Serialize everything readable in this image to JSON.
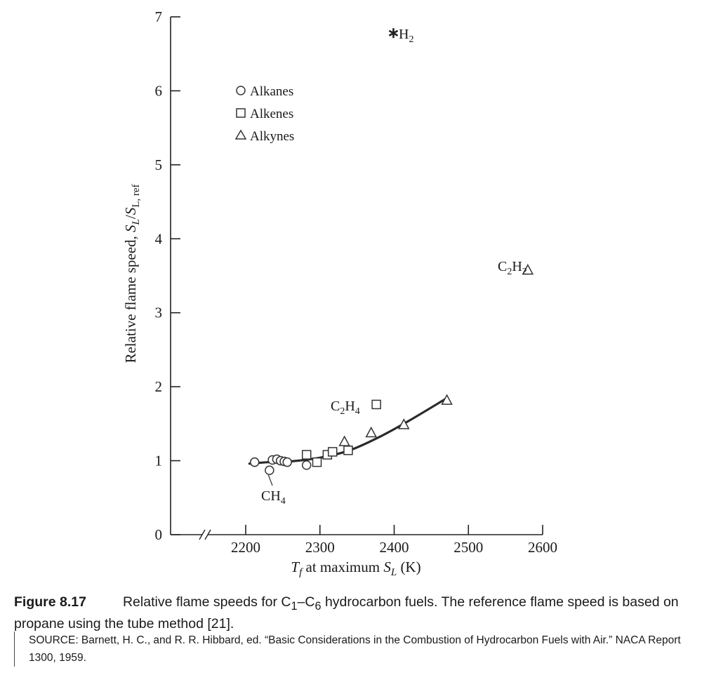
{
  "chart_data": {
    "type": "scatter",
    "xlabel": {
      "main": "T",
      "sub1": "f",
      "mid": " at maximum ",
      "s": "S",
      "sub2": "L",
      "unit": " (K)"
    },
    "ylabel": {
      "main": "Relative flame speed, ",
      "s1": "S",
      "sub1": "L",
      "slash": "/",
      "s2": "S",
      "sub2": "L, ref"
    },
    "xlim": [
      2100,
      2600
    ],
    "ylim": [
      0,
      7
    ],
    "x_ticks": [
      "2200",
      "2300",
      "2400",
      "2500",
      "2600"
    ],
    "y_ticks": [
      "0",
      "1",
      "2",
      "3",
      "4",
      "5",
      "6",
      "7"
    ],
    "axis_break": "x",
    "legend_position": "upper-left",
    "series": [
      {
        "name": "Alkanes",
        "marker": "circle",
        "x": [
          2212,
          2232,
          2236,
          2242,
          2247,
          2252,
          2256,
          2282
        ],
        "y": [
          0.98,
          0.87,
          1.01,
          1.02,
          1.0,
          0.99,
          0.98,
          0.94
        ]
      },
      {
        "name": "Alkenes",
        "marker": "square",
        "x": [
          2282,
          2296,
          2310,
          2317,
          2338,
          2376
        ],
        "y": [
          1.08,
          0.98,
          1.08,
          1.12,
          1.14,
          1.76
        ]
      },
      {
        "name": "Alkynes",
        "marker": "triangle",
        "x": [
          2333,
          2369,
          2413,
          2471,
          2580
        ],
        "y": [
          1.26,
          1.38,
          1.49,
          1.82,
          3.58
        ]
      },
      {
        "name": "H2",
        "marker": "asterisk",
        "x": [
          2399
        ],
        "y": [
          6.78
        ]
      }
    ],
    "trend_curve": {
      "x": [
        2205,
        2230,
        2260,
        2300,
        2340,
        2380,
        2420,
        2470
      ],
      "y": [
        0.96,
        0.98,
        0.99,
        1.04,
        1.14,
        1.32,
        1.54,
        1.84
      ]
    },
    "annotations": {
      "h2": {
        "main": "H",
        "sub": "2"
      },
      "c2h2": {
        "a": "C",
        "sa": "2",
        "b": "H",
        "sb": "2"
      },
      "c2h4": {
        "a": "C",
        "sa": "2",
        "b": "H",
        "sb": "4"
      },
      "ch4": {
        "a": "CH",
        "sa": "4"
      }
    }
  },
  "caption": {
    "label": "Figure 8.17",
    "text_1": "Relative flame speeds for C",
    "sub_1": "1",
    "text_2": "–C",
    "sub_2": "6",
    "text_3": " hydrocarbon fuels. The reference flame speed is based on propane using the tube method [21]."
  },
  "source": "SOURCE: Barnett, H. C., and R. R. Hibbard, ed. “Basic Considerations in the Combustion of Hydrocarbon Fuels with Air.” NACA Report 1300, 1959."
}
